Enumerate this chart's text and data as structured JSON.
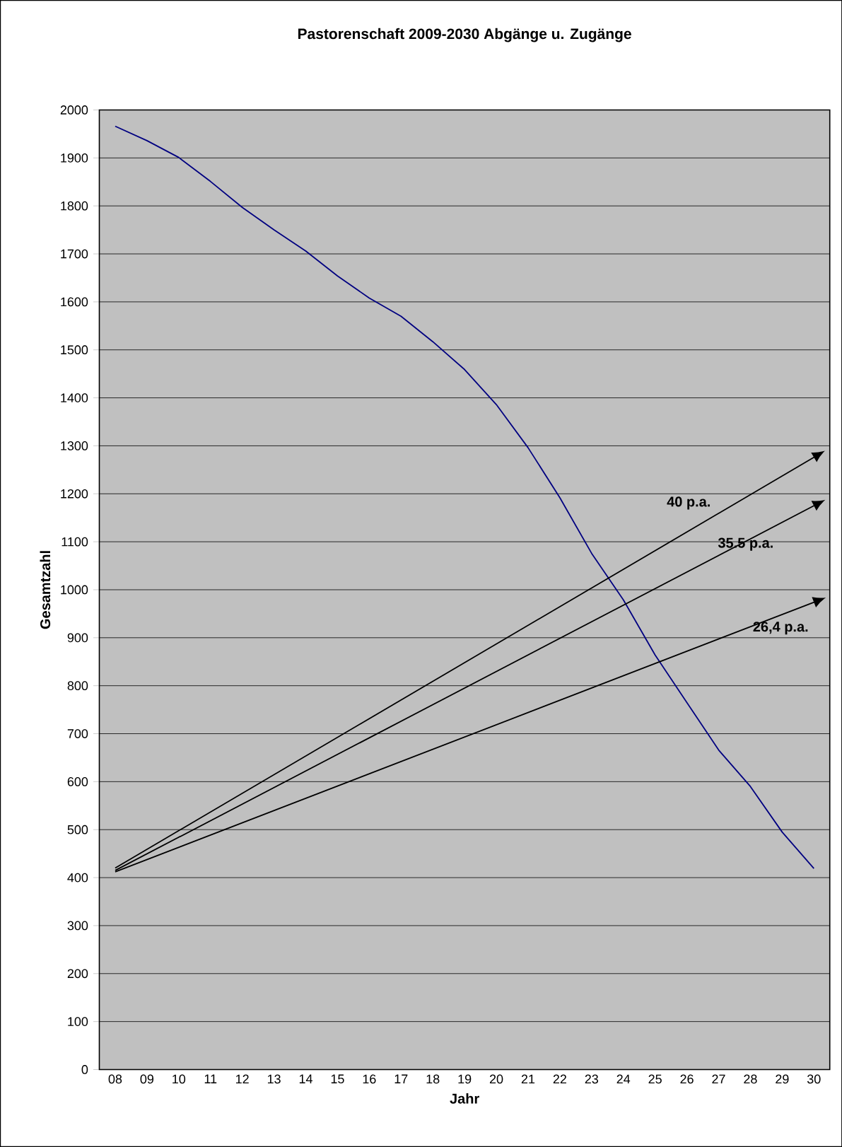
{
  "chart_data": {
    "type": "line",
    "title": "Pastorenschaft 2009-2030 Abgänge u. Zugänge",
    "xlabel": "Jahr",
    "ylabel": "Gesamtzahl",
    "categories": [
      "08",
      "09",
      "10",
      "11",
      "12",
      "13",
      "14",
      "15",
      "16",
      "17",
      "18",
      "19",
      "20",
      "21",
      "22",
      "23",
      "24",
      "25",
      "26",
      "27",
      "28",
      "29",
      "30"
    ],
    "ylim": [
      0,
      2000
    ],
    "yticks": [
      0,
      100,
      200,
      300,
      400,
      500,
      600,
      700,
      800,
      900,
      1000,
      1100,
      1200,
      1300,
      1400,
      1500,
      1600,
      1700,
      1800,
      1900,
      2000
    ],
    "grid": "y",
    "marker": "none",
    "series": [
      {
        "color": "#000080",
        "values": [
          1966,
          1936,
          1901,
          1851,
          1797,
          1750,
          1706,
          1654,
          1608,
          1570,
          1517,
          1459,
          1386,
          1296,
          1192,
          1076,
          979,
          864,
          765,
          666,
          590,
          495,
          419
        ]
      },
      {
        "name": "40 p.a.",
        "color": "#000000",
        "values": [
          420,
          null,
          null,
          null,
          null,
          null,
          null,
          null,
          null,
          null,
          null,
          null,
          null,
          null,
          null,
          null,
          null,
          null,
          null,
          null,
          null,
          null,
          1276
        ]
      },
      {
        "name": "35.5 p.a.",
        "color": "#000000",
        "values": [
          415,
          null,
          null,
          null,
          null,
          null,
          null,
          null,
          null,
          null,
          null,
          null,
          null,
          null,
          null,
          null,
          null,
          null,
          null,
          null,
          null,
          null,
          1175
        ]
      },
      {
        "name": "26,4 p.a.",
        "color": "#000000",
        "values": [
          412,
          null,
          null,
          null,
          null,
          null,
          null,
          null,
          null,
          null,
          null,
          null,
          null,
          null,
          null,
          null,
          null,
          null,
          null,
          null,
          null,
          null,
          974
        ]
      }
    ]
  }
}
